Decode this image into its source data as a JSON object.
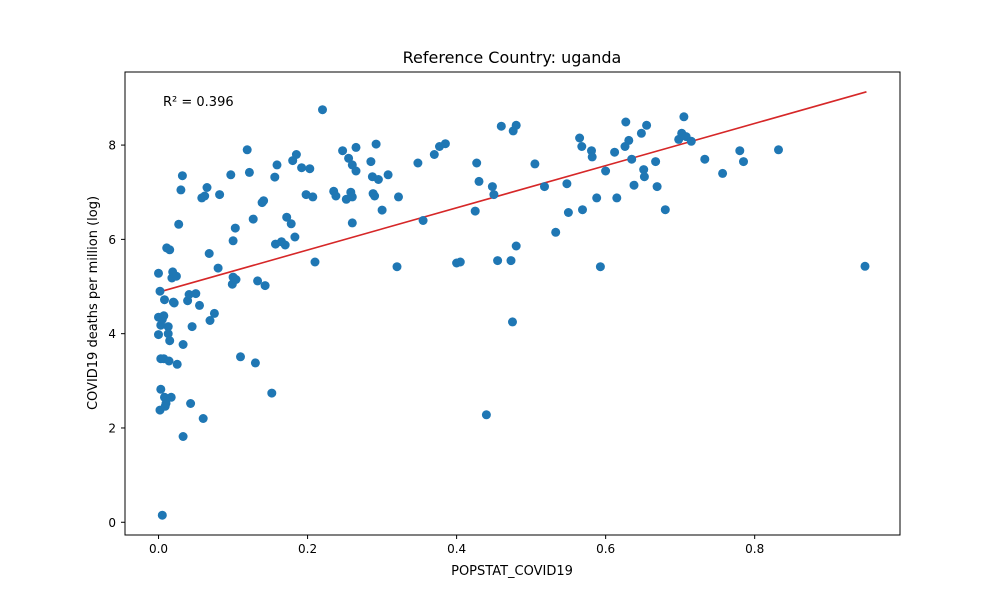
{
  "chart_data": {
    "type": "scatter",
    "title": "Reference Country: uganda",
    "xlabel": "POPSTAT_COVID19",
    "ylabel": "COVID19 deaths per million (log)",
    "annotation": "R² = 0.396",
    "xlim": [
      -0.045,
      0.995
    ],
    "ylim": [
      -0.27,
      9.55
    ],
    "xticks": [
      0.0,
      0.2,
      0.4,
      0.6,
      0.8
    ],
    "xtick_labels": [
      "0.0",
      "0.2",
      "0.4",
      "0.6",
      "0.8"
    ],
    "yticks": [
      0,
      2,
      4,
      6,
      8
    ],
    "ytick_labels": [
      "0",
      "2",
      "4",
      "6",
      "8"
    ],
    "grid": false,
    "point_color": "#1f77b4",
    "fit_color": "#d62728",
    "fit_line": {
      "x": [
        0.0,
        0.95
      ],
      "y": [
        4.88,
        9.13
      ]
    },
    "points": [
      [
        0.005,
        0.15
      ],
      [
        0.0,
        5.28
      ],
      [
        0.0,
        4.35
      ],
      [
        0.0,
        3.98
      ],
      [
        0.002,
        4.9
      ],
      [
        0.003,
        4.18
      ],
      [
        0.003,
        3.47
      ],
      [
        0.003,
        2.82
      ],
      [
        0.002,
        2.38
      ],
      [
        0.005,
        4.3
      ],
      [
        0.007,
        4.38
      ],
      [
        0.007,
        3.47
      ],
      [
        0.008,
        4.72
      ],
      [
        0.008,
        2.65
      ],
      [
        0.009,
        2.46
      ],
      [
        0.01,
        2.52
      ],
      [
        0.011,
        5.82
      ],
      [
        0.013,
        4.15
      ],
      [
        0.013,
        4.0
      ],
      [
        0.014,
        3.42
      ],
      [
        0.015,
        5.78
      ],
      [
        0.015,
        3.85
      ],
      [
        0.017,
        2.65
      ],
      [
        0.018,
        5.18
      ],
      [
        0.019,
        5.31
      ],
      [
        0.02,
        4.67
      ],
      [
        0.021,
        4.65
      ],
      [
        0.024,
        5.22
      ],
      [
        0.025,
        3.35
      ],
      [
        0.027,
        6.32
      ],
      [
        0.03,
        7.05
      ],
      [
        0.032,
        7.35
      ],
      [
        0.033,
        1.82
      ],
      [
        0.033,
        3.77
      ],
      [
        0.039,
        4.7
      ],
      [
        0.041,
        4.83
      ],
      [
        0.043,
        2.52
      ],
      [
        0.045,
        4.15
      ],
      [
        0.05,
        4.85
      ],
      [
        0.055,
        4.6
      ],
      [
        0.058,
        6.88
      ],
      [
        0.06,
        2.2
      ],
      [
        0.062,
        6.92
      ],
      [
        0.065,
        7.1
      ],
      [
        0.068,
        5.7
      ],
      [
        0.069,
        4.28
      ],
      [
        0.075,
        4.43
      ],
      [
        0.08,
        5.39
      ],
      [
        0.082,
        6.95
      ],
      [
        0.097,
        7.37
      ],
      [
        0.099,
        5.05
      ],
      [
        0.1,
        5.97
      ],
      [
        0.1,
        5.2
      ],
      [
        0.103,
        6.24
      ],
      [
        0.104,
        5.15
      ],
      [
        0.11,
        3.51
      ],
      [
        0.119,
        7.9
      ],
      [
        0.122,
        7.42
      ],
      [
        0.127,
        6.43
      ],
      [
        0.13,
        3.38
      ],
      [
        0.133,
        5.12
      ],
      [
        0.139,
        6.78
      ],
      [
        0.141,
        6.82
      ],
      [
        0.143,
        5.02
      ],
      [
        0.152,
        2.74
      ],
      [
        0.156,
        7.32
      ],
      [
        0.157,
        5.9
      ],
      [
        0.159,
        7.58
      ],
      [
        0.165,
        5.95
      ],
      [
        0.17,
        5.88
      ],
      [
        0.172,
        6.47
      ],
      [
        0.178,
        6.33
      ],
      [
        0.18,
        7.67
      ],
      [
        0.183,
        6.05
      ],
      [
        0.185,
        7.8
      ],
      [
        0.192,
        7.52
      ],
      [
        0.198,
        6.95
      ],
      [
        0.203,
        7.5
      ],
      [
        0.207,
        6.9
      ],
      [
        0.21,
        5.52
      ],
      [
        0.22,
        8.75
      ],
      [
        0.235,
        7.02
      ],
      [
        0.238,
        6.92
      ],
      [
        0.247,
        7.88
      ],
      [
        0.252,
        6.85
      ],
      [
        0.255,
        7.72
      ],
      [
        0.258,
        7.0
      ],
      [
        0.26,
        6.35
      ],
      [
        0.26,
        6.9
      ],
      [
        0.26,
        7.58
      ],
      [
        0.265,
        7.45
      ],
      [
        0.265,
        7.95
      ],
      [
        0.285,
        7.65
      ],
      [
        0.287,
        7.33
      ],
      [
        0.288,
        6.97
      ],
      [
        0.29,
        6.92
      ],
      [
        0.292,
        8.02
      ],
      [
        0.295,
        7.27
      ],
      [
        0.3,
        6.62
      ],
      [
        0.308,
        7.37
      ],
      [
        0.32,
        5.42
      ],
      [
        0.322,
        6.9
      ],
      [
        0.348,
        7.62
      ],
      [
        0.355,
        6.4
      ],
      [
        0.37,
        7.8
      ],
      [
        0.377,
        7.97
      ],
      [
        0.385,
        8.03
      ],
      [
        0.4,
        5.5
      ],
      [
        0.405,
        5.52
      ],
      [
        0.425,
        6.6
      ],
      [
        0.427,
        7.62
      ],
      [
        0.43,
        7.23
      ],
      [
        0.44,
        2.28
      ],
      [
        0.448,
        7.12
      ],
      [
        0.45,
        6.95
      ],
      [
        0.455,
        5.55
      ],
      [
        0.46,
        8.4
      ],
      [
        0.473,
        5.55
      ],
      [
        0.475,
        4.25
      ],
      [
        0.476,
        8.3
      ],
      [
        0.48,
        8.42
      ],
      [
        0.48,
        5.86
      ],
      [
        0.505,
        7.6
      ],
      [
        0.518,
        7.12
      ],
      [
        0.533,
        6.15
      ],
      [
        0.548,
        7.18
      ],
      [
        0.55,
        6.57
      ],
      [
        0.565,
        8.15
      ],
      [
        0.568,
        7.97
      ],
      [
        0.569,
        6.63
      ],
      [
        0.581,
        7.88
      ],
      [
        0.582,
        7.75
      ],
      [
        0.588,
        6.88
      ],
      [
        0.593,
        5.42
      ],
      [
        0.6,
        7.45
      ],
      [
        0.612,
        7.85
      ],
      [
        0.615,
        6.88
      ],
      [
        0.626,
        7.97
      ],
      [
        0.627,
        8.49
      ],
      [
        0.631,
        8.1
      ],
      [
        0.635,
        7.7
      ],
      [
        0.638,
        7.15
      ],
      [
        0.648,
        8.25
      ],
      [
        0.651,
        7.48
      ],
      [
        0.652,
        7.33
      ],
      [
        0.655,
        8.42
      ],
      [
        0.667,
        7.65
      ],
      [
        0.669,
        7.12
      ],
      [
        0.68,
        6.63
      ],
      [
        0.698,
        8.12
      ],
      [
        0.702,
        8.25
      ],
      [
        0.705,
        8.6
      ],
      [
        0.708,
        8.18
      ],
      [
        0.715,
        8.08
      ],
      [
        0.733,
        7.7
      ],
      [
        0.757,
        7.4
      ],
      [
        0.78,
        7.88
      ],
      [
        0.785,
        7.65
      ],
      [
        0.832,
        7.9
      ],
      [
        0.948,
        5.43
      ]
    ]
  }
}
